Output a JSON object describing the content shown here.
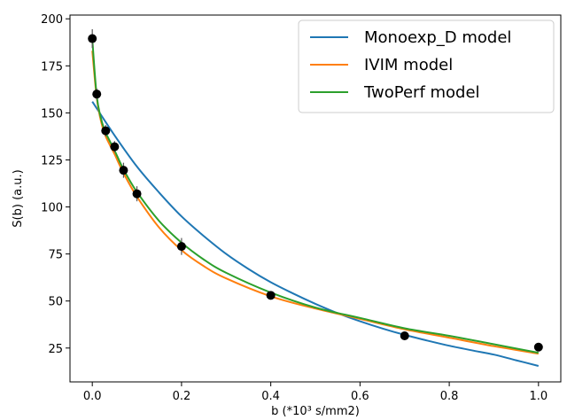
{
  "chart_data": {
    "type": "line",
    "xlabel": "b  (*10³ s/mm2)",
    "ylabel": "S(b)  (a.u.)",
    "xlim": [
      -0.05,
      1.05
    ],
    "ylim": [
      7,
      202
    ],
    "x_ticks": [
      0.0,
      0.2,
      0.4,
      0.6,
      0.8,
      1.0
    ],
    "x_tick_labels": [
      "0.0",
      "0.2",
      "0.4",
      "0.6",
      "0.8",
      "1.0"
    ],
    "y_ticks": [
      25,
      50,
      75,
      100,
      125,
      150,
      175,
      200
    ],
    "y_tick_labels": [
      "25",
      "50",
      "75",
      "100",
      "125",
      "150",
      "175",
      "200"
    ],
    "grid": false,
    "legend_position": "top-right",
    "series": [
      {
        "name": "Monoexp_D model",
        "color": "#1f77b4",
        "x": [
          0.0,
          0.05,
          0.1,
          0.15,
          0.2,
          0.25,
          0.3,
          0.35,
          0.4,
          0.45,
          0.5,
          0.55,
          0.6,
          0.65,
          0.7,
          0.75,
          0.8,
          0.85,
          0.9,
          0.95,
          1.0
        ],
        "values": [
          156,
          138,
          121.5,
          107.6,
          95,
          84.5,
          75,
          67,
          60,
          54,
          48.5,
          43.5,
          39.2,
          35.4,
          32,
          29,
          26.2,
          23.8,
          21.5,
          18.5,
          15.5
        ]
      },
      {
        "name": "IVIM model",
        "color": "#ff7f0e",
        "x": [
          0.0,
          0.01,
          0.02,
          0.03,
          0.05,
          0.07,
          0.1,
          0.15,
          0.2,
          0.25,
          0.3,
          0.4,
          0.5,
          0.6,
          0.7,
          0.8,
          0.9,
          1.0
        ],
        "values": [
          183,
          158,
          145,
          137.5,
          128,
          118,
          105.5,
          89,
          77,
          68.5,
          62,
          52.5,
          46,
          40.5,
          35,
          30.5,
          26,
          22
        ]
      },
      {
        "name": "TwoPerf model",
        "color": "#2ca02c",
        "x": [
          0.0,
          0.01,
          0.02,
          0.03,
          0.05,
          0.07,
          0.1,
          0.15,
          0.2,
          0.25,
          0.3,
          0.4,
          0.5,
          0.6,
          0.7,
          0.8,
          0.9,
          1.0
        ],
        "values": [
          189,
          159,
          146.5,
          139.5,
          130,
          120,
          108,
          92.5,
          81,
          72,
          65,
          54.5,
          46.5,
          41,
          35.5,
          31.5,
          27,
          22.5
        ]
      }
    ],
    "measurements": {
      "color": "#000000",
      "x": [
        0.0,
        0.01,
        0.03,
        0.05,
        0.07,
        0.1,
        0.2,
        0.4,
        0.7,
        1.0
      ],
      "values": [
        189.5,
        160,
        140.5,
        132,
        119.5,
        107,
        79,
        53,
        31.5,
        25.5
      ],
      "errors": [
        5,
        3,
        3,
        3,
        4,
        4,
        4.5,
        2,
        1.5,
        1.5
      ]
    }
  }
}
